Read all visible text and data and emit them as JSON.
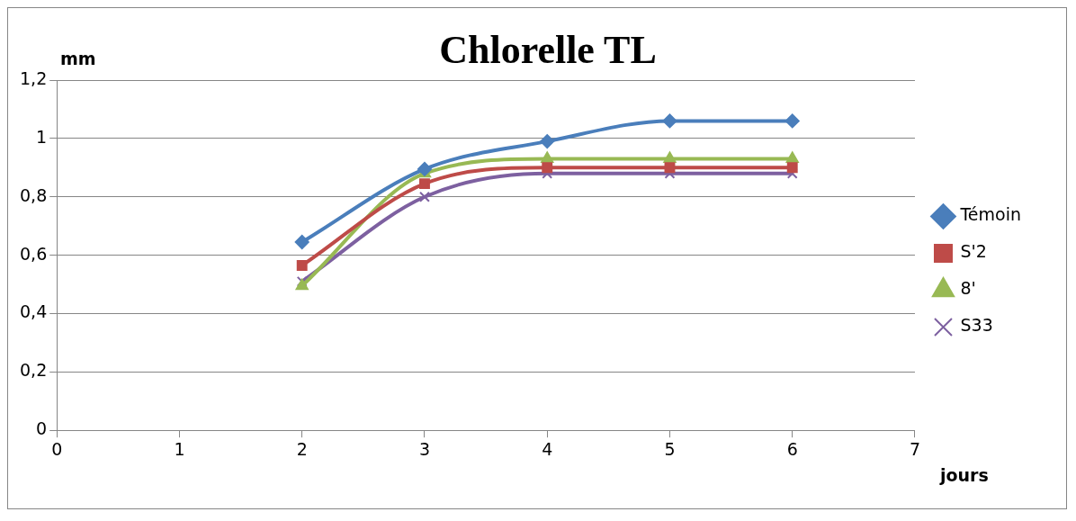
{
  "chart_data": {
    "type": "line",
    "title": "Chlorelle TL",
    "ylabel": "mm",
    "xlabel": "jours",
    "x": [
      2,
      3,
      4,
      5,
      6
    ],
    "series": [
      {
        "name": "Témoin",
        "color": "#4a7ebb",
        "marker": "diamond",
        "values": [
          0.645,
          0.895,
          0.99,
          1.06,
          1.06
        ]
      },
      {
        "name": "S'2",
        "color": "#be4b48",
        "marker": "square",
        "values": [
          0.565,
          0.845,
          0.9,
          0.9,
          0.9
        ]
      },
      {
        "name": "8'",
        "color": "#98b954",
        "marker": "triangle",
        "values": [
          0.495,
          0.88,
          0.93,
          0.93,
          0.93
        ]
      },
      {
        "name": "S33",
        "color": "#7d60a0",
        "marker": "cross",
        "values": [
          0.51,
          0.8,
          0.88,
          0.88,
          0.88
        ]
      }
    ],
    "xlim": [
      0,
      7
    ],
    "xticks": [
      0,
      1,
      2,
      3,
      4,
      5,
      6,
      7
    ],
    "ylim": [
      0,
      1.2
    ],
    "yticks": [
      0,
      {
        "value": 0.2,
        "label": "0,2"
      },
      {
        "value": 0.4,
        "label": "0,4"
      },
      {
        "value": 0.6,
        "label": "0,6"
      },
      {
        "value": 0.8,
        "label": "0,8"
      },
      1,
      {
        "value": 1.2,
        "label": "1,2"
      }
    ],
    "grid": "y",
    "legend": "right",
    "line_style": "solid"
  }
}
